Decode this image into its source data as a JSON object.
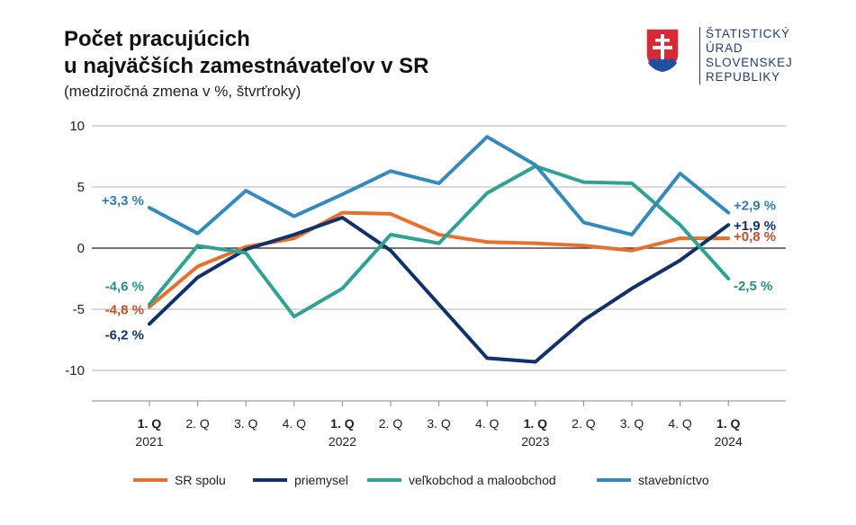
{
  "header": {
    "title_line1": "Počet pracujúcich",
    "title_line2": "u najväčších zamestnávateľov v SR",
    "subtitle": "(medziročná zmena v %, štvrťroky)"
  },
  "logo": {
    "icon": "slovak-coat-of-arms-icon",
    "lines": [
      "ŠTATISTICKÝ",
      "ÚRAD",
      "SLOVENSKEJ",
      "REPUBLIKY"
    ]
  },
  "chart_data": {
    "type": "line",
    "title": "Počet pracujúcich u najväčších zamestnávateľov v SR",
    "subtitle": "(medziročná zmena v %, štvrťroky)",
    "xlabel": "",
    "ylabel": "",
    "ylim": [
      -10,
      10
    ],
    "yticks": [
      "10",
      "5",
      "0",
      "-5",
      "-10"
    ],
    "grid": true,
    "legend_position": "bottom",
    "categories": [
      {
        "q": "1. Q",
        "year": "2021",
        "bold": true
      },
      {
        "q": "2. Q",
        "year": "",
        "bold": false
      },
      {
        "q": "3. Q",
        "year": "",
        "bold": false
      },
      {
        "q": "4. Q",
        "year": "",
        "bold": false
      },
      {
        "q": "1. Q",
        "year": "2022",
        "bold": true
      },
      {
        "q": "2. Q",
        "year": "",
        "bold": false
      },
      {
        "q": "3. Q",
        "year": "",
        "bold": false
      },
      {
        "q": "4. Q",
        "year": "",
        "bold": false
      },
      {
        "q": "1. Q",
        "year": "2023",
        "bold": true
      },
      {
        "q": "2. Q",
        "year": "",
        "bold": false
      },
      {
        "q": "3. Q",
        "year": "",
        "bold": false
      },
      {
        "q": "4. Q",
        "year": "",
        "bold": false
      },
      {
        "q": "1. Q",
        "year": "2024",
        "bold": true
      }
    ],
    "series": [
      {
        "name": "SR spolu",
        "color": "#e8702a",
        "values": [
          -4.8,
          -1.5,
          0.1,
          0.8,
          2.9,
          2.8,
          1.1,
          0.5,
          0.4,
          0.2,
          -0.2,
          0.8,
          0.8
        ],
        "start_label": "-4,8 %",
        "end_label": "+0,8 %",
        "label_color": "#c0502a"
      },
      {
        "name": "priemysel",
        "color": "#12306b",
        "values": [
          -6.2,
          -2.4,
          -0.1,
          1.1,
          2.5,
          -0.2,
          -4.6,
          -9.0,
          -9.3,
          -5.9,
          -3.3,
          -1.0,
          1.9
        ],
        "start_label": "-6,2 %",
        "end_label": "+1,9 %",
        "label_color": "#12306b"
      },
      {
        "name": "veľkobchod a maloobchod",
        "color": "#2fa391",
        "values": [
          -4.6,
          0.2,
          -0.4,
          -5.6,
          -3.3,
          1.1,
          0.4,
          4.5,
          6.7,
          5.4,
          5.3,
          1.9,
          -2.5
        ],
        "start_label": "-4,6 %",
        "end_label": "-2,5 %",
        "label_color": "#2a8f80"
      },
      {
        "name": "stavebníctvo",
        "color": "#3589bd",
        "values": [
          3.3,
          1.2,
          4.7,
          2.6,
          4.4,
          6.3,
          5.3,
          9.1,
          6.8,
          2.1,
          1.1,
          6.1,
          2.9
        ],
        "start_label": "+3,3 %",
        "end_label": "+2,9 %",
        "label_color": "#2e7fb0"
      }
    ]
  }
}
